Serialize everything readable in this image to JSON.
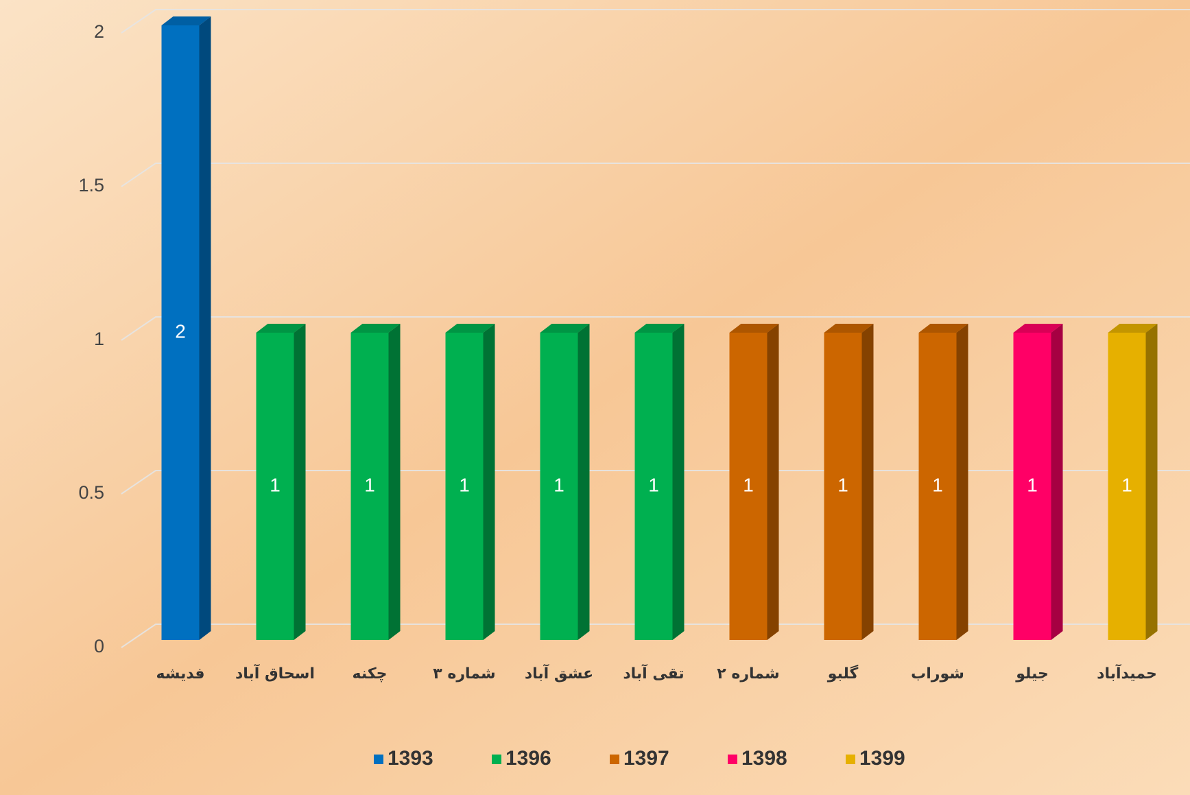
{
  "chart_data": {
    "type": "bar3d",
    "categories": [
      "فدیشه",
      "اسحاق آباد",
      "چکنه",
      "شماره ۳",
      "عشق آباد",
      "تقی آباد",
      "شماره ۲",
      "گلبو",
      "شوراب",
      "جیلو",
      "حمیدآباد"
    ],
    "series": [
      {
        "name": "1393",
        "color": "#0070c0",
        "values": [
          2,
          null,
          null,
          null,
          null,
          null,
          null,
          null,
          null,
          null,
          null
        ]
      },
      {
        "name": "1396",
        "color": "#00b050",
        "values": [
          null,
          1,
          1,
          1,
          1,
          1,
          null,
          null,
          null,
          null,
          null
        ]
      },
      {
        "name": "1397",
        "color": "#cc6600",
        "values": [
          null,
          null,
          null,
          null,
          null,
          null,
          1,
          1,
          1,
          null,
          null
        ]
      },
      {
        "name": "1398",
        "color": "#ff0066",
        "values": [
          null,
          null,
          null,
          null,
          null,
          null,
          null,
          null,
          null,
          1,
          null
        ]
      },
      {
        "name": "1399",
        "color": "#e6b000",
        "values": [
          null,
          null,
          null,
          null,
          null,
          null,
          null,
          null,
          null,
          null,
          1
        ]
      }
    ],
    "ylim": [
      0,
      2
    ],
    "yticks": [
      0,
      0.5,
      1,
      1.5,
      2
    ],
    "grid": true,
    "legend": "bottom"
  }
}
